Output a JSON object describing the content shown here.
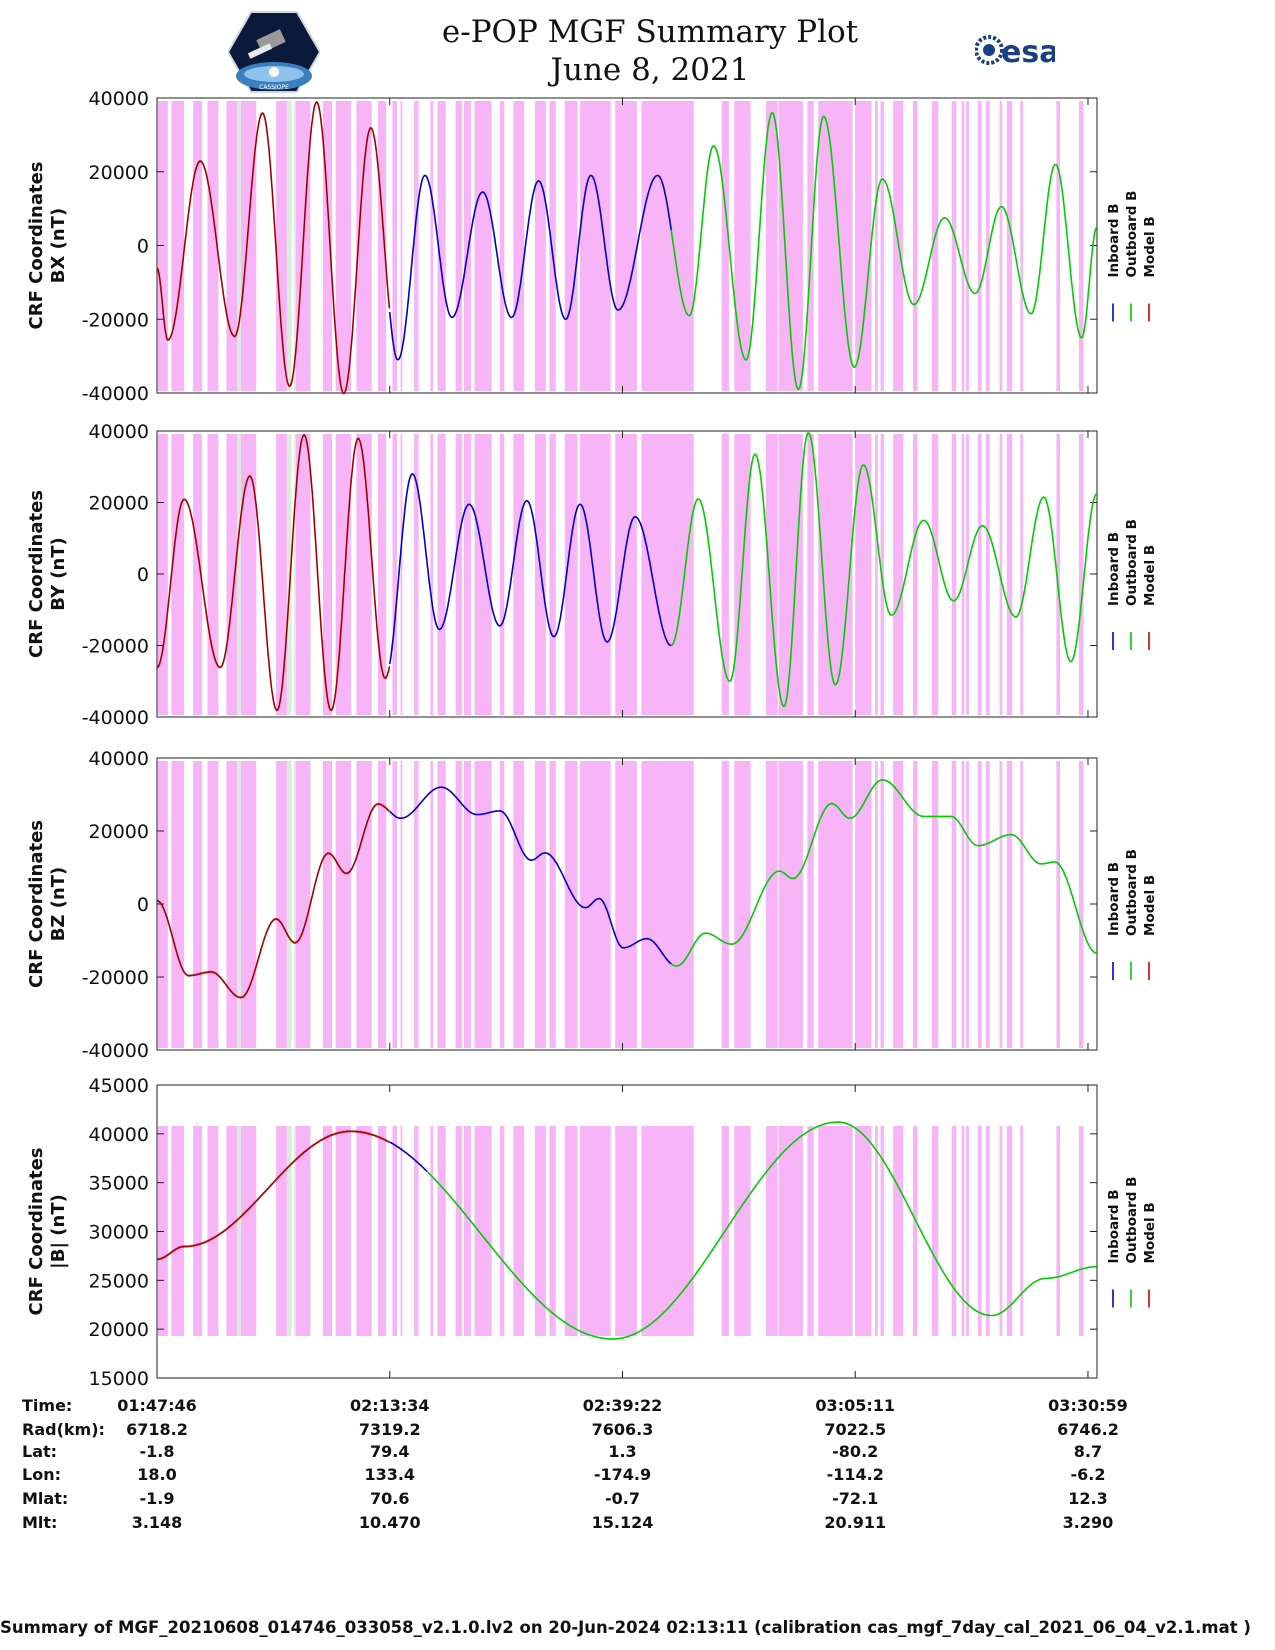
{
  "header": {
    "title": "e-POP MGF Summary Plot",
    "date": "June 8, 2021",
    "left_logo_text": "CASSIOPE",
    "right_logo_text": "esa"
  },
  "colors": {
    "inboard": "#0000cc",
    "outboard": "#00cc00",
    "model": "#cc0000",
    "shading": "#f7b4f7",
    "shading_light": "#d8ecd8"
  },
  "chart_data": [
    {
      "type": "line",
      "panel": "BX",
      "ylabel_line1": "CRF Coordinates",
      "ylabel_line2": "BX (nT)",
      "ylim": [
        -40000,
        40000
      ],
      "yticks": [
        40000,
        20000,
        0,
        -20000,
        -40000
      ],
      "legend": [
        "Inboard B",
        "Outboard B",
        "Model B"
      ],
      "legend_placement": "right",
      "x_minutes": [
        0,
        104.2
      ],
      "extrema": [
        {
          "t": 0.0,
          "v": -6000
        },
        {
          "t": 1.2,
          "v": -25500
        },
        {
          "t": 4.8,
          "v": 23000
        },
        {
          "t": 8.6,
          "v": -24500
        },
        {
          "t": 11.7,
          "v": 36000
        },
        {
          "t": 14.7,
          "v": -38000
        },
        {
          "t": 17.7,
          "v": 39000
        },
        {
          "t": 20.7,
          "v": -40000
        },
        {
          "t": 23.7,
          "v": 32000
        },
        {
          "t": 26.7,
          "v": -31000
        },
        {
          "t": 29.7,
          "v": 19000
        },
        {
          "t": 32.7,
          "v": -19500
        },
        {
          "t": 36.1,
          "v": 14500
        },
        {
          "t": 39.3,
          "v": -19500
        },
        {
          "t": 42.3,
          "v": 17500
        },
        {
          "t": 45.3,
          "v": -20000
        },
        {
          "t": 48.1,
          "v": 19000
        },
        {
          "t": 51.1,
          "v": -17500
        },
        {
          "t": 55.5,
          "v": 19000
        },
        {
          "t": 59.0,
          "v": -19000
        },
        {
          "t": 61.7,
          "v": 27000
        },
        {
          "t": 65.3,
          "v": -31000
        },
        {
          "t": 68.2,
          "v": 36000
        },
        {
          "t": 71.1,
          "v": -39000
        },
        {
          "t": 73.9,
          "v": 35000
        },
        {
          "t": 77.3,
          "v": -33000
        },
        {
          "t": 80.4,
          "v": 18000
        },
        {
          "t": 83.9,
          "v": -16000
        },
        {
          "t": 87.3,
          "v": 7500
        },
        {
          "t": 90.7,
          "v": -13000
        },
        {
          "t": 93.6,
          "v": 10500
        },
        {
          "t": 96.9,
          "v": -18500
        },
        {
          "t": 99.6,
          "v": 22000
        },
        {
          "t": 102.5,
          "v": -25000
        },
        {
          "t": 104.2,
          "v": 5000
        }
      ]
    },
    {
      "type": "line",
      "panel": "BY",
      "ylabel_line1": "CRF Coordinates",
      "ylabel_line2": "BY (nT)",
      "ylim": [
        -40000,
        40000
      ],
      "yticks": [
        40000,
        20000,
        0,
        -20000,
        -40000
      ],
      "legend": [
        "Inboard B",
        "Outboard B",
        "Model B"
      ],
      "legend_placement": "right",
      "x_minutes": [
        0,
        104.2
      ],
      "extrema": [
        {
          "t": 0.0,
          "v": -26000
        },
        {
          "t": 3.0,
          "v": 21000
        },
        {
          "t": 7.0,
          "v": -26000
        },
        {
          "t": 10.3,
          "v": 27500
        },
        {
          "t": 13.3,
          "v": -38000
        },
        {
          "t": 16.3,
          "v": 39000
        },
        {
          "t": 19.3,
          "v": -38000
        },
        {
          "t": 22.3,
          "v": 38000
        },
        {
          "t": 25.3,
          "v": -29000
        },
        {
          "t": 28.3,
          "v": 28000
        },
        {
          "t": 31.3,
          "v": -15500
        },
        {
          "t": 34.6,
          "v": 19500
        },
        {
          "t": 38.0,
          "v": -14500
        },
        {
          "t": 41.0,
          "v": 20500
        },
        {
          "t": 44.0,
          "v": -17500
        },
        {
          "t": 46.9,
          "v": 19500
        },
        {
          "t": 49.9,
          "v": -19000
        },
        {
          "t": 53.0,
          "v": 16000
        },
        {
          "t": 57.0,
          "v": -20000
        },
        {
          "t": 60.0,
          "v": 21000
        },
        {
          "t": 63.5,
          "v": -30000
        },
        {
          "t": 66.3,
          "v": 33500
        },
        {
          "t": 69.5,
          "v": -37000
        },
        {
          "t": 72.2,
          "v": 39500
        },
        {
          "t": 75.2,
          "v": -31000
        },
        {
          "t": 78.3,
          "v": 30500
        },
        {
          "t": 81.4,
          "v": -11500
        },
        {
          "t": 85.0,
          "v": 15000
        },
        {
          "t": 88.3,
          "v": -7500
        },
        {
          "t": 91.5,
          "v": 13500
        },
        {
          "t": 95.2,
          "v": -12000
        },
        {
          "t": 98.3,
          "v": 21500
        },
        {
          "t": 101.3,
          "v": -24500
        },
        {
          "t": 104.2,
          "v": 22500
        }
      ]
    },
    {
      "type": "line",
      "panel": "BZ",
      "ylabel_line1": "CRF Coordinates",
      "ylabel_line2": "BZ (nT)",
      "ylim": [
        -40000,
        40000
      ],
      "yticks": [
        40000,
        20000,
        0,
        -20000,
        -40000
      ],
      "legend": [
        "Inboard B",
        "Outboard B",
        "Model B"
      ],
      "legend_placement": "right",
      "x_minutes": [
        0,
        104.2
      ],
      "extrema": [
        {
          "t": 0.0,
          "v": 1000
        },
        {
          "t": 3.5,
          "v": -19500
        },
        {
          "t": 6.0,
          "v": -18500
        },
        {
          "t": 9.3,
          "v": -25500
        },
        {
          "t": 13.2,
          "v": -4000
        },
        {
          "t": 15.3,
          "v": -10500
        },
        {
          "t": 19.0,
          "v": 14000
        },
        {
          "t": 21.0,
          "v": 8500
        },
        {
          "t": 24.5,
          "v": 27500
        },
        {
          "t": 27.0,
          "v": 23500
        },
        {
          "t": 31.5,
          "v": 32000
        },
        {
          "t": 35.5,
          "v": 24500
        },
        {
          "t": 38.0,
          "v": 25500
        },
        {
          "t": 41.5,
          "v": 12000
        },
        {
          "t": 43.0,
          "v": 14000
        },
        {
          "t": 47.5,
          "v": -1000
        },
        {
          "t": 49.0,
          "v": 1500
        },
        {
          "t": 51.7,
          "v": -12000
        },
        {
          "t": 54.3,
          "v": -9500
        },
        {
          "t": 57.6,
          "v": -17000
        },
        {
          "t": 60.8,
          "v": -8000
        },
        {
          "t": 63.7,
          "v": -11000
        },
        {
          "t": 69.0,
          "v": 9000
        },
        {
          "t": 70.5,
          "v": 7000
        },
        {
          "t": 74.8,
          "v": 27500
        },
        {
          "t": 76.8,
          "v": 23500
        },
        {
          "t": 80.4,
          "v": 34000
        },
        {
          "t": 85.0,
          "v": 24000
        },
        {
          "t": 88.0,
          "v": 24000
        },
        {
          "t": 91.0,
          "v": 16000
        },
        {
          "t": 94.7,
          "v": 19000
        },
        {
          "t": 98.0,
          "v": 11000
        },
        {
          "t": 99.5,
          "v": 11500
        },
        {
          "t": 104.2,
          "v": -13500
        }
      ]
    },
    {
      "type": "line",
      "panel": "|B|",
      "ylabel_line1": "CRF Coordinates",
      "ylabel_line2": "|B| (nT)",
      "ylim": [
        15000,
        45000
      ],
      "yticks": [
        45000,
        40000,
        35000,
        30000,
        25000,
        20000,
        15000
      ],
      "legend": [
        "Inboard B",
        "Outboard B",
        "Model B"
      ],
      "legend_placement": "right",
      "x_minutes": [
        0,
        104.2
      ],
      "extrema": [
        {
          "t": 0.0,
          "v": 27200
        },
        {
          "t": 3.0,
          "v": 28500
        },
        {
          "t": 21.5,
          "v": 40300
        },
        {
          "t": 50.5,
          "v": 19000
        },
        {
          "t": 75.5,
          "v": 41200
        },
        {
          "t": 92.5,
          "v": 21400
        },
        {
          "t": 98.5,
          "v": 25200
        },
        {
          "t": 104.2,
          "v": 26400
        }
      ]
    }
  ],
  "segments": {
    "model_end_min": 25.8,
    "inboard_end_min": 57.0,
    "bmag_inboard_end_min": 30.0
  },
  "shading_intervals_min": [
    [
      0.1,
      1.2
    ],
    [
      1.6,
      3.0
    ],
    [
      4.0,
      5.0
    ],
    [
      5.6,
      6.8
    ],
    [
      7.7,
      8.9
    ],
    [
      9.3,
      11.0
    ],
    [
      13.2,
      14.4
    ],
    [
      15.4,
      17.0
    ],
    [
      18.4,
      19.4
    ],
    [
      19.8,
      21.5
    ],
    [
      22.1,
      23.8
    ],
    [
      24.5,
      25.4
    ],
    [
      26.1,
      26.6
    ],
    [
      27.0,
      27.2
    ],
    [
      28.5,
      29.0
    ],
    [
      30.3,
      30.6
    ],
    [
      31.1,
      32.0
    ],
    [
      33.1,
      33.8
    ],
    [
      34.0,
      34.8
    ],
    [
      35.2,
      37.1
    ],
    [
      38.0,
      38.5
    ],
    [
      39.5,
      40.7
    ],
    [
      41.9,
      43.1
    ],
    [
      43.5,
      44.2
    ],
    [
      45.2,
      46.6
    ],
    [
      46.9,
      50.3
    ],
    [
      50.8,
      53.2
    ],
    [
      53.7,
      59.5
    ],
    [
      62.6,
      63.4
    ],
    [
      64.0,
      65.8
    ],
    [
      67.5,
      68.8
    ],
    [
      68.9,
      71.6
    ],
    [
      72.1,
      72.8
    ],
    [
      73.3,
      77.1
    ],
    [
      77.4,
      79.2
    ],
    [
      79.6,
      79.9
    ],
    [
      80.2,
      80.6
    ],
    [
      81.6,
      82.7
    ],
    [
      83.8,
      84.3
    ],
    [
      85.9,
      86.6
    ],
    [
      88.1,
      88.6
    ],
    [
      89.2,
      89.5
    ],
    [
      89.7,
      90.0
    ],
    [
      91.0,
      91.4
    ],
    [
      91.9,
      92.3
    ],
    [
      93.4,
      93.7
    ],
    [
      94.2,
      94.8
    ],
    [
      95.7,
      96.0
    ],
    [
      99.7,
      100.1
    ],
    [
      102.2,
      102.7
    ]
  ],
  "light_intervals_min": [
    [
      8.9,
      9.3
    ],
    [
      14.4,
      14.9
    ],
    [
      15.2,
      15.4
    ]
  ],
  "x_ticks": [
    {
      "minute": 0,
      "time": "01:47:46",
      "rad": "6718.2",
      "lat": "-1.8",
      "lon": "18.0",
      "mlat": "-1.9",
      "mlt": "3.148"
    },
    {
      "minute": 25.8,
      "time": "02:13:34",
      "rad": "7319.2",
      "lat": "79.4",
      "lon": "133.4",
      "mlat": "70.6",
      "mlt": "10.470"
    },
    {
      "minute": 51.6,
      "time": "02:39:22",
      "rad": "7606.3",
      "lat": "1.3",
      "lon": "-174.9",
      "mlat": "-0.7",
      "mlt": "15.124"
    },
    {
      "minute": 77.4,
      "time": "03:05:11",
      "rad": "7022.5",
      "lat": "-80.2",
      "lon": "-114.2",
      "mlat": "-72.1",
      "mlt": "20.911"
    },
    {
      "minute": 103.2,
      "time": "03:30:59",
      "rad": "6746.2",
      "lat": "8.7",
      "lon": "-6.2",
      "mlat": "12.3",
      "mlt": "3.290"
    }
  ],
  "row_labels": {
    "time": "Time:",
    "rad": "Rad(km):",
    "lat": "Lat:",
    "lon": "Lon:",
    "mlat": "Mlat:",
    "mlt": "Mlt:"
  },
  "footer": "Summary of MGF_20210608_014746_033058_v2.1.0.lv2 on 20-Jun-2024 02:13:11 (calibration cas_mgf_7day_cal_2021_06_04_v2.1.mat )"
}
